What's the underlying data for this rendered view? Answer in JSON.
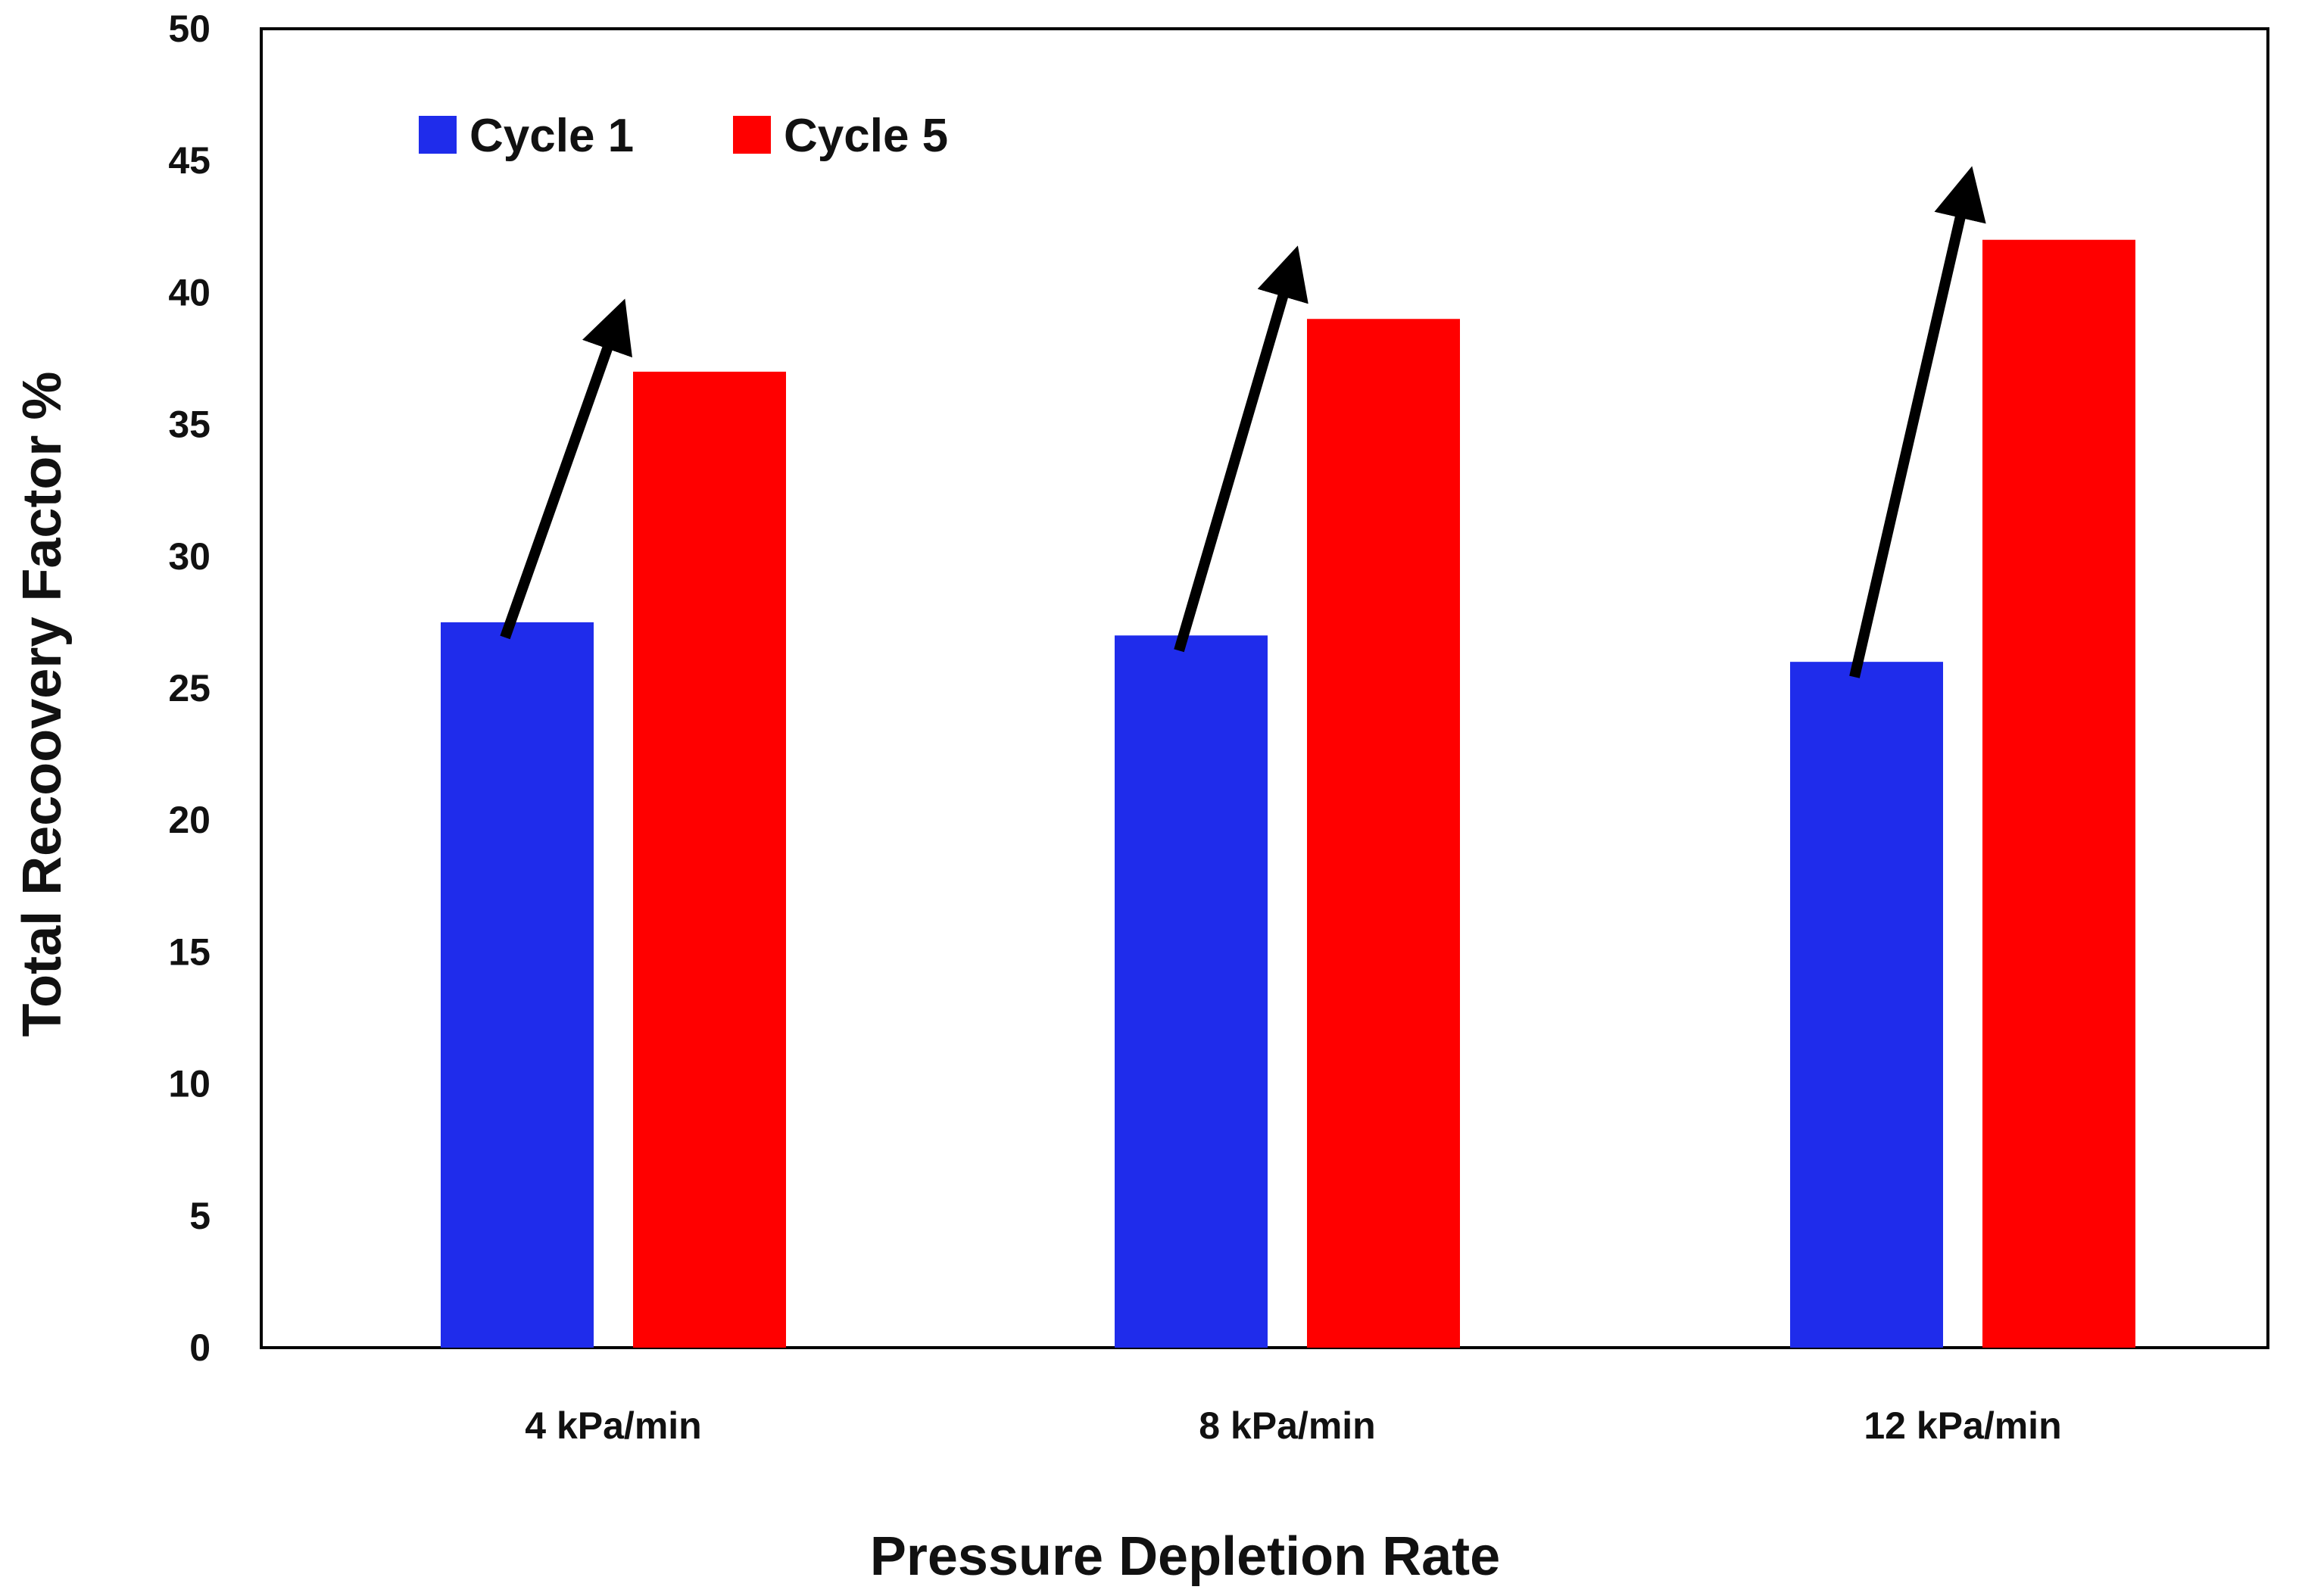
{
  "chart_data": {
    "type": "bar",
    "title": "",
    "xlabel": "Pressure Depletion Rate",
    "ylabel": "Total Recoovery Factor %",
    "categories": [
      "4 kPa/min",
      "8 kPa/min",
      "12 kPa/min"
    ],
    "series": [
      {
        "name": "Cycle 1",
        "color": "#1f2ceb",
        "values": [
          27.5,
          27.0,
          26.0
        ]
      },
      {
        "name": "Cycle 5",
        "color": "#ff0000",
        "values": [
          37.0,
          39.0,
          42.0
        ]
      }
    ],
    "ylim": [
      0,
      50
    ],
    "yticks": [
      "0",
      "5",
      "10",
      "15",
      "20",
      "25",
      "30",
      "35",
      "40",
      "45",
      "50"
    ],
    "grid": false,
    "legend_position": "top-left",
    "annotations": "arrows from each Cycle 1 bar toward the corresponding Cycle 5 bar"
  }
}
